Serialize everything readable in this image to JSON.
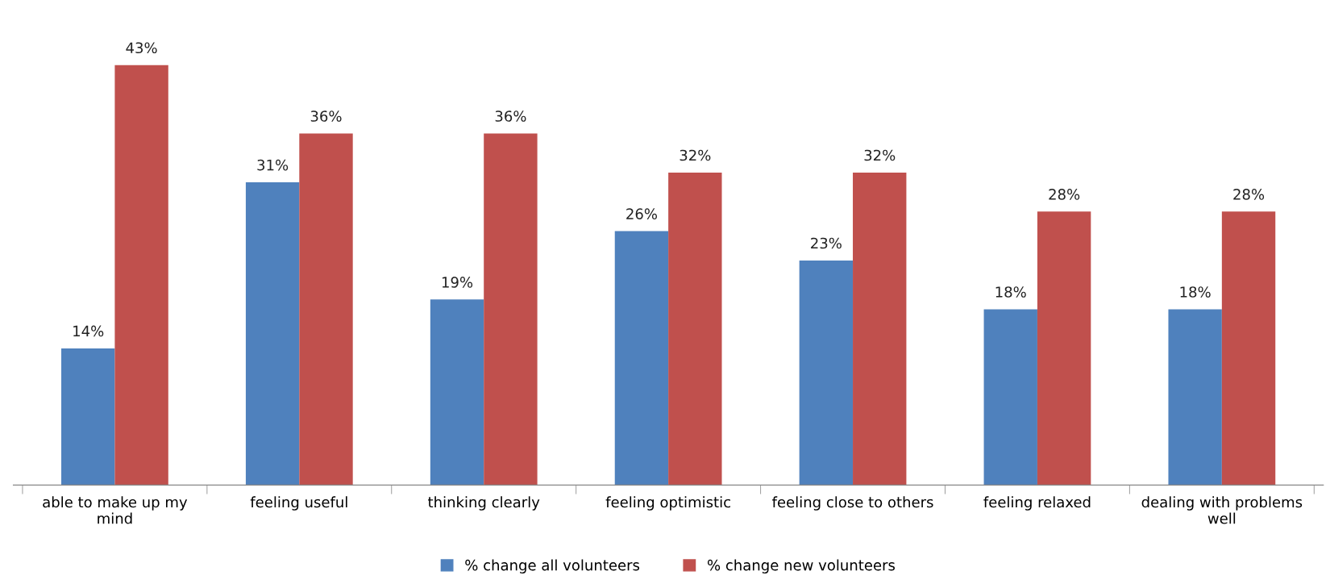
{
  "chart_data": {
    "type": "bar",
    "categories": [
      "able to make up my\nmind",
      "feeling useful",
      "thinking clearly",
      "feeling optimistic",
      "feeling close to others",
      "feeling relaxed",
      "dealing with problems\nwell"
    ],
    "series": [
      {
        "name": "% change all volunteers",
        "color": "#4f81bd",
        "values": [
          14,
          31,
          19,
          26,
          23,
          18,
          18
        ],
        "value_labels": [
          "14%",
          "31%",
          "19%",
          "26%",
          "23%",
          "18%",
          "18%"
        ]
      },
      {
        "name": "% change new volunteers",
        "color": "#c0504d",
        "values": [
          43,
          36,
          36,
          32,
          32,
          28,
          28
        ],
        "value_labels": [
          "43%",
          "36%",
          "36%",
          "32%",
          "32%",
          "28%",
          "28%"
        ]
      }
    ],
    "legend": "bottom",
    "grid": false,
    "tick_labels": "x"
  }
}
